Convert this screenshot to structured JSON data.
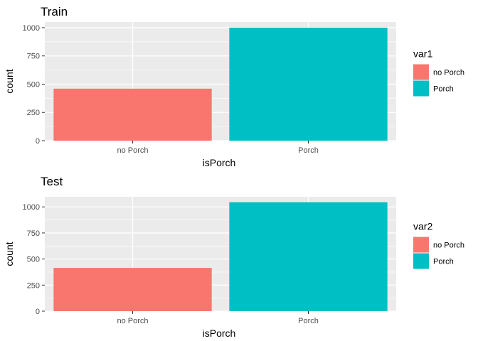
{
  "chart_data": [
    {
      "type": "bar",
      "title": "Train",
      "xlabel": "isPorch",
      "ylabel": "count",
      "categories": [
        "no Porch",
        "Porch"
      ],
      "values": [
        460,
        1000
      ],
      "colors": [
        "#F8766D",
        "#00BFC4"
      ],
      "ylim": [
        0,
        1050
      ],
      "yticks": [
        0,
        250,
        500,
        750,
        1000
      ],
      "ytick_labels": [
        "0",
        "250",
        "500",
        "750",
        "1000"
      ],
      "legend": {
        "title": "var1",
        "entries": [
          "no Porch",
          "Porch"
        ],
        "placement": "right"
      },
      "grid": true
    },
    {
      "type": "bar",
      "title": "Test",
      "xlabel": "isPorch",
      "ylabel": "count",
      "categories": [
        "no Porch",
        "Porch"
      ],
      "values": [
        415,
        1045
      ],
      "colors": [
        "#F8766D",
        "#00BFC4"
      ],
      "ylim": [
        0,
        1097
      ],
      "yticks": [
        0,
        250,
        500,
        750,
        1000
      ],
      "ytick_labels": [
        "0",
        "250",
        "500",
        "750",
        "1000"
      ],
      "legend": {
        "title": "var2",
        "entries": [
          "no Porch",
          "Porch"
        ],
        "placement": "right"
      },
      "grid": true
    }
  ],
  "theme": {
    "panel_bg": "#EBEBEB",
    "grid_color": "#FFFFFF",
    "tick_color": "#333333"
  }
}
